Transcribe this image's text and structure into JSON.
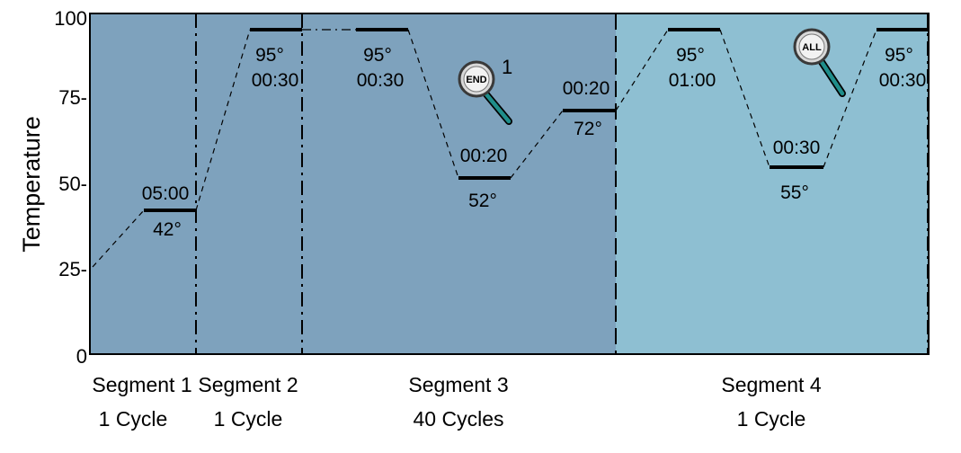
{
  "axis": {
    "ylabel": "Temperature",
    "ticks": [
      "100",
      "75-",
      "50-",
      "25-",
      "0"
    ]
  },
  "colors": {
    "background": "#ffffff",
    "plot_main": "#7ea2bd",
    "plot_highlight": "#8ebfd2",
    "line": "#000000",
    "icon_ring": "#3a3a3a",
    "icon_handle": "#1f8d8a"
  },
  "segments": [
    {
      "name": "Segment 1",
      "cycles": "1 Cycle"
    },
    {
      "name": "Segment 2",
      "cycles": "1 Cycle"
    },
    {
      "name": "Segment 3",
      "cycles": "40 Cycles"
    },
    {
      "name": "Segment 4",
      "cycles": "1 Cycle"
    }
  ],
  "steps": [
    {
      "temp": "42°",
      "time": "05:00"
    },
    {
      "temp": "95°",
      "time": "00:30"
    },
    {
      "temp": "95°",
      "time": "00:30"
    },
    {
      "temp": "52°",
      "time": "00:20"
    },
    {
      "temp": "72°",
      "time": "00:20"
    },
    {
      "temp": "95°",
      "time": "01:00"
    },
    {
      "temp": "55°",
      "time": "00:30"
    },
    {
      "temp": "95°",
      "time": "00:30"
    }
  ],
  "markers": [
    {
      "icon": "end-magnifier-icon",
      "label": "END",
      "count": "1"
    },
    {
      "icon": "all-magnifier-icon",
      "label": "ALL"
    }
  ]
}
